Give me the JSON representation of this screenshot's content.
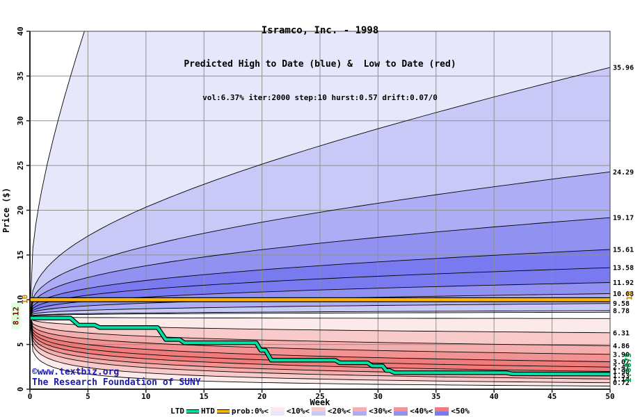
{
  "header": {
    "title": "Isramco, Inc. - 1998",
    "subtitle": "Predicted High to Date (blue) &  Low to Date (red)",
    "params": "vol:6.37% iter:2000 step:10 hurst:0.57 drift:0.07/0"
  },
  "watermark": {
    "line1": "©www.textbiz.org",
    "line2": "The Research Foundation of SUNY"
  },
  "side_labels": {
    "start_price": "8.12",
    "htd_left": "10",
    "htd_right": "10",
    "ltd_final": "1.6875"
  },
  "chart_data": {
    "type": "line",
    "title": "Isramco, Inc. - 1998",
    "subtitle": "Predicted High to Date (blue) &  Low to Date (red)",
    "params": "vol:6.37% iter:2000 step:10 hurst:0.57 drift:0.07/0",
    "xlabel": "Week",
    "ylabel": "Price ($)",
    "xlim": [
      0,
      50
    ],
    "ylim": [
      0,
      40
    ],
    "xticks": [
      0,
      5,
      10,
      15,
      20,
      25,
      30,
      35,
      40,
      45,
      50
    ],
    "yticks": [
      0,
      5,
      10,
      15,
      20,
      25,
      30,
      35,
      40
    ],
    "grid": true,
    "grid_color": "#909090",
    "start_price": 8.12,
    "curve_power": 0.3,
    "high_fan": {
      "boundary_ends": [
        8.78,
        9.58,
        10.68,
        11.92,
        13.58,
        15.61,
        19.17,
        24.29,
        35.96
      ],
      "labels": [
        "8.78",
        "9.58",
        "10.68",
        "11.92",
        "13.58",
        "15.61",
        "19.17",
        "24.29",
        "35.96"
      ],
      "outer_extreme_end": 208,
      "inner_extreme_end": 8.6
    },
    "low_fan": {
      "boundary_ends": [
        6.31,
        4.86,
        3.9,
        3.07,
        2.47,
        1.98,
        1.53,
        1.14,
        0.72
      ],
      "labels": [
        "6.31",
        "4.86",
        "3.90",
        "3.07",
        "2.47",
        "1.98",
        "1.53",
        "1.14",
        "0.72"
      ],
      "outer_extreme_end": 0.35,
      "inner_extreme_end": 7.9
    },
    "htd": {
      "name": "HTD",
      "value": 10,
      "color": "#ffb400"
    },
    "ltd": {
      "name": "LTD",
      "color": "#00e0a4",
      "final_value": 1.6875,
      "points": [
        [
          0,
          7.95
        ],
        [
          3.5,
          7.95
        ],
        [
          4.2,
          7.15
        ],
        [
          5.6,
          7.15
        ],
        [
          6.0,
          6.9
        ],
        [
          11.0,
          6.9
        ],
        [
          11.7,
          5.55
        ],
        [
          12.9,
          5.55
        ],
        [
          13.3,
          5.2
        ],
        [
          19.5,
          5.2
        ],
        [
          19.9,
          4.35
        ],
        [
          20.3,
          4.35
        ],
        [
          20.8,
          3.25
        ],
        [
          26.3,
          3.25
        ],
        [
          26.7,
          2.95
        ],
        [
          29.1,
          2.95
        ],
        [
          29.5,
          2.6
        ],
        [
          30.4,
          2.6
        ],
        [
          30.7,
          2.1
        ],
        [
          31.0,
          2.1
        ],
        [
          31.4,
          1.85
        ],
        [
          41.0,
          1.85
        ],
        [
          41.6,
          1.72
        ],
        [
          50,
          1.6875
        ]
      ]
    },
    "band_levels_blue": [
      "#7a7af0",
      "#9191f2",
      "#adadf5",
      "#c9c9f8",
      "#e7e7fb"
    ],
    "band_levels_red": [
      "#ef7b7b",
      "#f29292",
      "#f5aeae",
      "#f8caca",
      "#fceaea"
    ],
    "band_level_order": [
      5,
      4,
      3,
      2,
      1,
      1,
      2,
      3,
      4,
      5
    ]
  },
  "legend": {
    "items": [
      {
        "label": "LTD",
        "swatch": "ltd"
      },
      {
        "label": "HTD",
        "swatch": "htd"
      },
      {
        "label": "prob:0%<",
        "swatch": "level5"
      },
      {
        "label": "<10%<",
        "swatch": "level4"
      },
      {
        "label": "<20%<",
        "swatch": "level3"
      },
      {
        "label": "<30%<",
        "swatch": "level2"
      },
      {
        "label": "<40%<",
        "swatch": "level1"
      },
      {
        "label": "<50%",
        "swatch": null
      }
    ]
  }
}
